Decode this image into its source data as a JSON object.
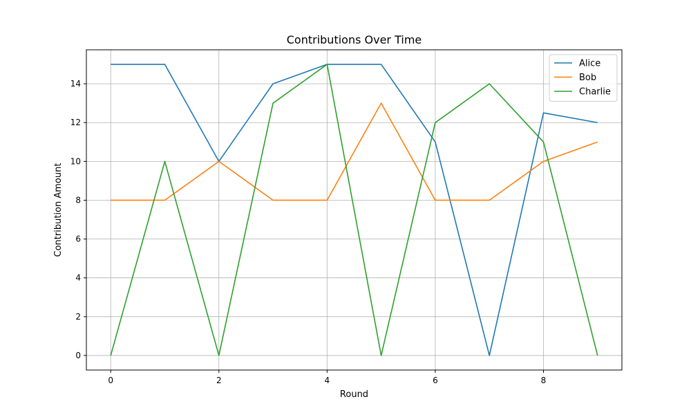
{
  "chart_data": {
    "type": "line",
    "title": "Contributions Over Time",
    "xlabel": "Round",
    "ylabel": "Contribution Amount",
    "x": [
      0,
      1,
      2,
      3,
      4,
      5,
      6,
      7,
      8,
      9
    ],
    "xticks": [
      0,
      2,
      4,
      6,
      8
    ],
    "yticks": [
      0,
      2,
      4,
      6,
      8,
      10,
      12,
      14
    ],
    "xlim": [
      -0.45,
      9.45
    ],
    "ylim": [
      -0.75,
      15.75
    ],
    "grid": true,
    "legend_position": "top-right",
    "series": [
      {
        "name": "Alice",
        "color": "#1f77b4",
        "values": [
          15,
          15,
          10,
          14,
          15,
          15,
          11,
          0,
          12.5,
          12
        ]
      },
      {
        "name": "Bob",
        "color": "#ff7f0e",
        "values": [
          8,
          8,
          10,
          8,
          8,
          13,
          8,
          8,
          10,
          11
        ]
      },
      {
        "name": "Charlie",
        "color": "#2ca02c",
        "values": [
          0,
          10,
          0,
          13,
          15,
          0,
          12,
          14,
          11,
          0
        ]
      }
    ]
  }
}
